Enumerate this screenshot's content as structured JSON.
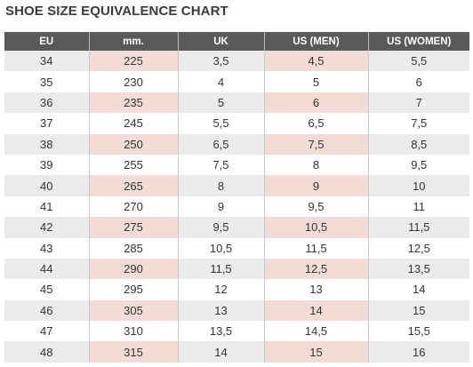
{
  "header": {
    "title": "SHOE SIZE EQUIVALENCE CHART"
  },
  "table": {
    "columns": [
      "EU",
      "mm.",
      "UK",
      "US (MEN)",
      "US (WOMEN)"
    ],
    "rows": [
      [
        "34",
        "225",
        "3,5",
        "4,5",
        "5,5"
      ],
      [
        "35",
        "230",
        "4",
        "5",
        "6"
      ],
      [
        "36",
        "235",
        "5",
        "6",
        "7"
      ],
      [
        "37",
        "245",
        "5,5",
        "6,5",
        "7,5"
      ],
      [
        "38",
        "250",
        "6,5",
        "7,5",
        "8,5"
      ],
      [
        "39",
        "255",
        "7,5",
        "8",
        "9,5"
      ],
      [
        "40",
        "265",
        "8",
        "9",
        "10"
      ],
      [
        "41",
        "270",
        "9",
        "9,5",
        "11"
      ],
      [
        "42",
        "275",
        "9,5",
        "10,5",
        "11,5"
      ],
      [
        "43",
        "285",
        "10,5",
        "11,5",
        "12,5"
      ],
      [
        "44",
        "290",
        "11,5",
        "12,5",
        "13,5"
      ],
      [
        "45",
        "295",
        "12",
        "13",
        "14"
      ],
      [
        "46",
        "305",
        "13",
        "14",
        "15"
      ],
      [
        "47",
        "310",
        "13,5",
        "14,5",
        "15,5"
      ],
      [
        "48",
        "315",
        "14",
        "15",
        "16"
      ]
    ]
  }
}
